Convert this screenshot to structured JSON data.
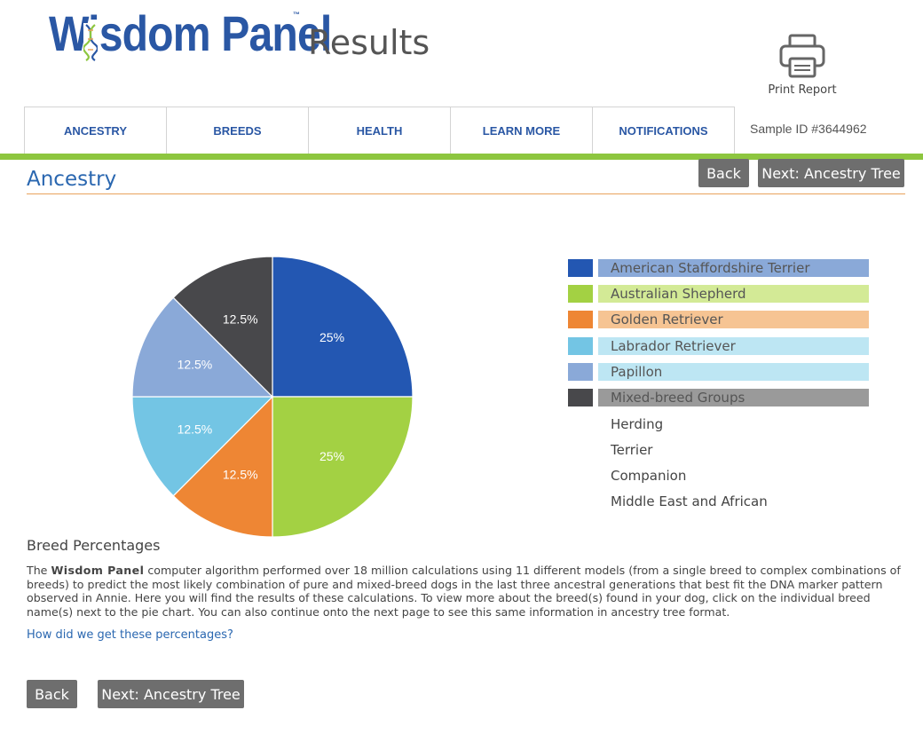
{
  "header": {
    "brand": "Wisdom Panel",
    "trademark": "™",
    "subtitle": "Results",
    "print_label": "Print Report"
  },
  "nav": {
    "tabs": [
      {
        "label": "ANCESTRY"
      },
      {
        "label": "BREEDS"
      },
      {
        "label": "HEALTH"
      },
      {
        "label": "LEARN MORE"
      },
      {
        "label": "NOTIFICATIONS"
      }
    ],
    "sample_id": "Sample ID #3644962"
  },
  "page": {
    "title": "Ancestry",
    "back_label": "Back",
    "next_label": "Next: Ancestry Tree"
  },
  "chart_data": {
    "type": "pie",
    "slices": [
      {
        "name": "American Staffordshire Terrier",
        "value": 25,
        "label": "25%",
        "color": "#2357b2"
      },
      {
        "name": "Australian Shepherd",
        "value": 25,
        "label": "25%",
        "color": "#a3d143"
      },
      {
        "name": "Golden Retriever",
        "value": 12.5,
        "label": "12.5%",
        "color": "#ee8634"
      },
      {
        "name": "Labrador Retriever",
        "value": 12.5,
        "label": "12.5%",
        "color": "#73c5e4"
      },
      {
        "name": "Papillon",
        "value": 12.5,
        "label": "12.5%",
        "color": "#8aa9d8"
      },
      {
        "name": "Mixed-breed Groups",
        "value": 12.5,
        "label": "12.5%",
        "color": "#48484b"
      }
    ]
  },
  "legend": {
    "items": [
      {
        "label": "American Staffordshire Terrier",
        "swatch": "#2357b2",
        "bg": "#8aa9d8"
      },
      {
        "label": "Australian Shepherd",
        "swatch": "#a3d143",
        "bg": "#d3ea96"
      },
      {
        "label": "Golden Retriever",
        "swatch": "#ee8634",
        "bg": "#f6c493"
      },
      {
        "label": "Labrador Retriever",
        "swatch": "#73c5e4",
        "bg": "#bde6f3"
      },
      {
        "label": "Papillon",
        "swatch": "#8aa9d8",
        "bg": "#bde6f3"
      },
      {
        "label": "Mixed-breed Groups",
        "swatch": "#48484b",
        "bg": "#9a9a9a"
      }
    ],
    "sub_groups": [
      "Herding",
      "Terrier",
      "Companion",
      "Middle East and African"
    ]
  },
  "breed_percentages": {
    "heading": "Breed Percentages",
    "para_prefix": "The ",
    "para_brand": "Wisdom Panel",
    "para_body": " computer algorithm performed over 18 million calculations using 11 different models (from a single breed to complex combinations of breeds) to predict the most likely combination of pure and mixed-breed dogs in the last three ancestral generations that best fit the DNA marker pattern observed in Annie. Here you will find the results of these calculations. To view more about the breed(s) found in your dog, click on the individual breed name(s) next to the pie chart. You can also continue onto the next page to see this same information in ancestry tree format.",
    "link": "How did we get these percentages?"
  }
}
